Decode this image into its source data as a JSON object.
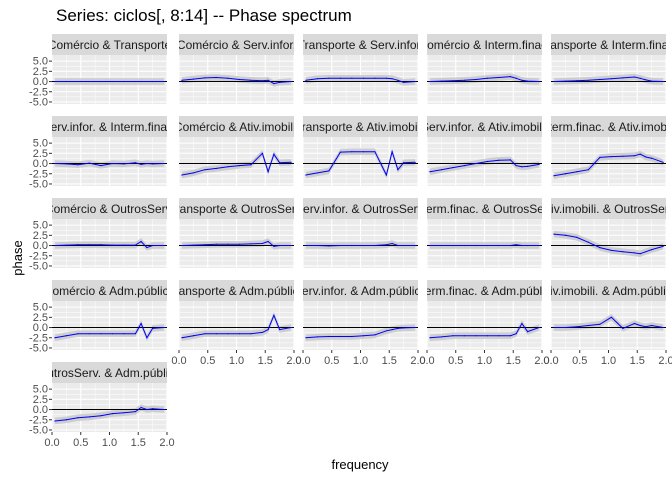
{
  "title": "Series: ciclos[, 8:14] --  Phase spectrum",
  "chart_data": {
    "type": "line",
    "title": "Series: ciclos[, 8:14] --  Phase spectrum",
    "xlabel": "frequency",
    "ylabel": "phase",
    "xlim": [
      0,
      2
    ],
    "ylim": [
      -5.5,
      6.5
    ],
    "x_ticks": [
      "0.0",
      "0.5",
      "1.0",
      "1.5",
      "2.0"
    ],
    "y_ticks": [
      "5.0",
      "2.5",
      "0.0",
      "-2.5",
      "-5.0"
    ],
    "grid": true,
    "colors": {
      "line": "#0000ff",
      "band": "#c8c8c8",
      "strip": "#d9d9d9",
      "panel": "#ebebeb",
      "zero_line": "#000000"
    },
    "x": [
      0.05,
      0.25,
      0.45,
      0.65,
      0.85,
      1.05,
      1.25,
      1.45,
      1.55,
      1.65,
      1.75,
      1.95
    ],
    "panels": [
      {
        "label": "Comércio & Transporte",
        "values": [
          0.0,
          0.0,
          0.0,
          0.0,
          0.0,
          0.0,
          0.0,
          0.0,
          0.0,
          0.0,
          0.0,
          0.0
        ]
      },
      {
        "label": "Comércio & Serv.infor.",
        "values": [
          0.3,
          0.6,
          0.9,
          1.0,
          0.8,
          0.5,
          0.3,
          0.2,
          0.3,
          -0.5,
          -0.2,
          0.0
        ]
      },
      {
        "label": "Transporte & Serv.infor.",
        "values": [
          0.3,
          0.7,
          0.8,
          0.8,
          0.8,
          0.8,
          0.8,
          0.8,
          0.7,
          0.3,
          -0.2,
          0.0
        ]
      },
      {
        "label": "Comércio & Interm.finac.",
        "values": [
          0.0,
          0.1,
          0.2,
          0.3,
          0.5,
          0.8,
          1.0,
          1.2,
          0.8,
          0.3,
          0.1,
          0.0
        ]
      },
      {
        "label": "Transporte & Interm.finac.",
        "values": [
          0.0,
          0.1,
          0.2,
          0.3,
          0.5,
          0.7,
          0.9,
          1.1,
          0.8,
          0.4,
          0.1,
          0.0
        ]
      },
      {
        "label": "Serv.infor. & Interm.finac.",
        "values": [
          0.0,
          -0.1,
          -0.3,
          0.1,
          -0.5,
          0.0,
          -0.1,
          0.2,
          -0.2,
          0.0,
          -0.1,
          0.0
        ]
      },
      {
        "label": "Comércio & Ativ.imobili.",
        "values": [
          -2.8,
          -2.3,
          -1.5,
          -1.2,
          -0.8,
          -0.5,
          -0.3,
          2.5,
          -2.0,
          2.3,
          0.2,
          0.3
        ]
      },
      {
        "label": "Transporte & Ativ.imobili.",
        "values": [
          -2.8,
          -2.3,
          -1.8,
          2.8,
          2.9,
          2.9,
          2.9,
          -2.8,
          2.9,
          -1.5,
          0.2,
          0.3
        ]
      },
      {
        "label": "Serv.infor. & Ativ.imobili.",
        "values": [
          -2.0,
          -1.5,
          -1.0,
          -0.5,
          0.0,
          0.5,
          0.8,
          0.9,
          -0.5,
          -0.8,
          -0.7,
          -0.2
        ]
      },
      {
        "label": "Interm.finac. & Ativ.imobili.",
        "values": [
          -3.0,
          -2.5,
          -2.0,
          -1.5,
          1.5,
          1.7,
          1.8,
          1.9,
          2.3,
          1.6,
          1.3,
          0.3
        ]
      },
      {
        "label": "Comércio & OutrosServ.",
        "values": [
          0.0,
          0.1,
          0.2,
          0.2,
          0.2,
          0.1,
          0.1,
          0.1,
          1.0,
          -0.5,
          0.0,
          0.0
        ]
      },
      {
        "label": "Transporte & OutrosServ.",
        "values": [
          0.0,
          0.1,
          0.2,
          0.3,
          0.3,
          0.3,
          0.4,
          0.5,
          1.0,
          -0.2,
          0.0,
          0.0
        ]
      },
      {
        "label": "Serv.infor. & OutrosServ.",
        "values": [
          0.0,
          0.0,
          -0.1,
          0.0,
          0.0,
          0.0,
          0.0,
          0.2,
          0.5,
          0.0,
          0.0,
          0.0
        ]
      },
      {
        "label": "Interm.finac. & OutrosServ.",
        "values": [
          0.0,
          0.0,
          0.0,
          0.0,
          0.0,
          0.0,
          0.0,
          0.0,
          0.2,
          0.0,
          0.0,
          0.0
        ]
      },
      {
        "label": "Ativ.imobili. & OutrosServ.",
        "values": [
          2.8,
          2.5,
          2.0,
          0.8,
          -0.5,
          -1.2,
          -1.5,
          -1.8,
          -2.0,
          -1.5,
          -1.0,
          -0.2
        ]
      },
      {
        "label": "Comércio & Adm.pública",
        "values": [
          -2.5,
          -2.0,
          -1.5,
          -1.5,
          -1.5,
          -1.5,
          -1.5,
          -1.5,
          1.0,
          -2.5,
          -0.2,
          0.0
        ]
      },
      {
        "label": "Transporte & Adm.pública",
        "values": [
          -2.5,
          -2.0,
          -1.5,
          -1.5,
          -1.5,
          -1.5,
          -1.5,
          -1.2,
          -0.5,
          3.0,
          -0.5,
          0.0
        ]
      },
      {
        "label": "Serv.infor. & Adm.pública",
        "values": [
          -2.5,
          -2.3,
          -2.2,
          -2.2,
          -2.2,
          -2.0,
          -1.8,
          -0.8,
          -0.5,
          -0.2,
          -0.1,
          0.0
        ]
      },
      {
        "label": "Interm.finac. & Adm.pública",
        "values": [
          -2.5,
          -2.3,
          -2.0,
          -2.0,
          -2.0,
          -2.0,
          -2.0,
          -2.0,
          -1.5,
          1.0,
          -1.0,
          0.0
        ]
      },
      {
        "label": "Ativ.imobili. & Adm.pública",
        "values": [
          0.0,
          0.0,
          0.2,
          0.5,
          0.8,
          2.5,
          -0.2,
          1.0,
          0.5,
          0.2,
          0.5,
          0.0
        ]
      },
      {
        "label": "OutrosServ. & Adm.pública",
        "values": [
          -2.8,
          -2.5,
          -2.0,
          -1.8,
          -1.5,
          -1.0,
          -0.8,
          -0.5,
          0.5,
          0.0,
          0.2,
          0.0
        ]
      }
    ]
  }
}
